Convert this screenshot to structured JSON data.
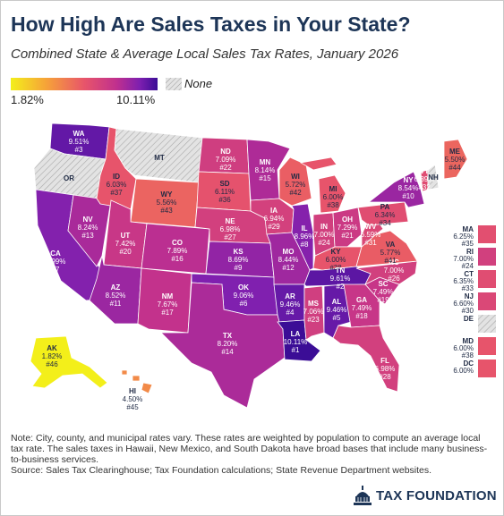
{
  "title": "How High Are Sales Taxes in Your State?",
  "subtitle": "Combined State & Average Local Sales Tax Rates, January 2026",
  "legend": {
    "min_label": "1.82%",
    "max_label": "10.11%",
    "none_label": "None",
    "gradient_colors": [
      "#f3ef1a",
      "#f6a03a",
      "#e8556a",
      "#c0308e",
      "#7d1fb0",
      "#3b0d96"
    ]
  },
  "colors": {
    "none_fill": "#e3e3e3",
    "border": "#ffffff",
    "title": "#1d3557"
  },
  "states": [
    {
      "abbr": "WA",
      "rate": "9.51%",
      "rank": "#3"
    },
    {
      "abbr": "OR",
      "rate": "",
      "rank": ""
    },
    {
      "abbr": "CA",
      "rate": "8.99%",
      "rank": "#7"
    },
    {
      "abbr": "NV",
      "rate": "8.24%",
      "rank": "#13"
    },
    {
      "abbr": "ID",
      "rate": "6.03%",
      "rank": "#37"
    },
    {
      "abbr": "MT",
      "rate": "",
      "rank": ""
    },
    {
      "abbr": "WY",
      "rate": "5.56%",
      "rank": "#43"
    },
    {
      "abbr": "UT",
      "rate": "7.42%",
      "rank": "#20"
    },
    {
      "abbr": "AZ",
      "rate": "8.52%",
      "rank": "#11"
    },
    {
      "abbr": "CO",
      "rate": "7.89%",
      "rank": "#16"
    },
    {
      "abbr": "NM",
      "rate": "7.67%",
      "rank": "#17"
    },
    {
      "abbr": "ND",
      "rate": "7.09%",
      "rank": "#22"
    },
    {
      "abbr": "SD",
      "rate": "6.11%",
      "rank": "#36"
    },
    {
      "abbr": "NE",
      "rate": "6.98%",
      "rank": "#27"
    },
    {
      "abbr": "KS",
      "rate": "8.69%",
      "rank": "#9"
    },
    {
      "abbr": "OK",
      "rate": "9.06%",
      "rank": "#6"
    },
    {
      "abbr": "TX",
      "rate": "8.20%",
      "rank": "#14"
    },
    {
      "abbr": "MN",
      "rate": "8.14%",
      "rank": "#15"
    },
    {
      "abbr": "IA",
      "rate": "6.94%",
      "rank": "#29"
    },
    {
      "abbr": "MO",
      "rate": "8.44%",
      "rank": "#12"
    },
    {
      "abbr": "AR",
      "rate": "9.46%",
      "rank": "#4"
    },
    {
      "abbr": "LA",
      "rate": "10.11%",
      "rank": "#1"
    },
    {
      "abbr": "WI",
      "rate": "5.72%",
      "rank": "#42"
    },
    {
      "abbr": "IL",
      "rate": "8.96%",
      "rank": "#8"
    },
    {
      "abbr": "MI",
      "rate": "6.00%",
      "rank": "#38"
    },
    {
      "abbr": "IN",
      "rate": "7.00%",
      "rank": "#24"
    },
    {
      "abbr": "OH",
      "rate": "7.29%",
      "rank": "#21"
    },
    {
      "abbr": "KY",
      "rate": "6.00%",
      "rank": "#38"
    },
    {
      "abbr": "TN",
      "rate": "9.61%",
      "rank": "#2"
    },
    {
      "abbr": "MS",
      "rate": "7.06%",
      "rank": "#23"
    },
    {
      "abbr": "AL",
      "rate": "9.46%",
      "rank": "#5"
    },
    {
      "abbr": "GA",
      "rate": "7.49%",
      "rank": "#18"
    },
    {
      "abbr": "FL",
      "rate": "6.98%",
      "rank": "#28"
    },
    {
      "abbr": "SC",
      "rate": "7.49%",
      "rank": "#19"
    },
    {
      "abbr": "NC",
      "rate": "7.00%",
      "rank": "#26"
    },
    {
      "abbr": "VA",
      "rate": "5.77%",
      "rank": "#41"
    },
    {
      "abbr": "WV",
      "rate": "6.59%",
      "rank": "#31"
    },
    {
      "abbr": "PA",
      "rate": "6.34%",
      "rank": "#34"
    },
    {
      "abbr": "NY",
      "rate": "8.54%",
      "rank": "#10"
    },
    {
      "abbr": "ME",
      "rate": "5.50%",
      "rank": "#44"
    },
    {
      "abbr": "VT",
      "rate": "6.39%",
      "rank": "#32"
    },
    {
      "abbr": "NH",
      "rate": "",
      "rank": ""
    },
    {
      "abbr": "AK",
      "rate": "1.82%",
      "rank": "#46"
    },
    {
      "abbr": "HI",
      "rate": "4.50%",
      "rank": "#45"
    }
  ],
  "side_states": [
    {
      "abbr": "MA",
      "rate": "6.25%",
      "rank": "#35"
    },
    {
      "abbr": "RI",
      "rate": "7.00%",
      "rank": "#24"
    },
    {
      "abbr": "CT",
      "rate": "6.35%",
      "rank": "#33"
    },
    {
      "abbr": "NJ",
      "rate": "6.60%",
      "rank": "#30"
    },
    {
      "abbr": "DE",
      "rate": "",
      "rank": ""
    },
    {
      "abbr": "MD",
      "rate": "6.00%",
      "rank": "#38"
    },
    {
      "abbr": "DC",
      "rate": "6.00%",
      "rank": ""
    }
  ],
  "note": {
    "line1": "Note: City, county, and municipal rates vary. These rates are weighted by population to compute an average local tax rate. The sales taxes in Hawaii, New Mexico, and South Dakota have broad bases that include many business-to-business services.",
    "line2": "Source: Sales Tax Clearinghouse; Tax Foundation calculations; State Revenue Department websites."
  },
  "logo": {
    "text": "TAX FOUNDATION"
  }
}
